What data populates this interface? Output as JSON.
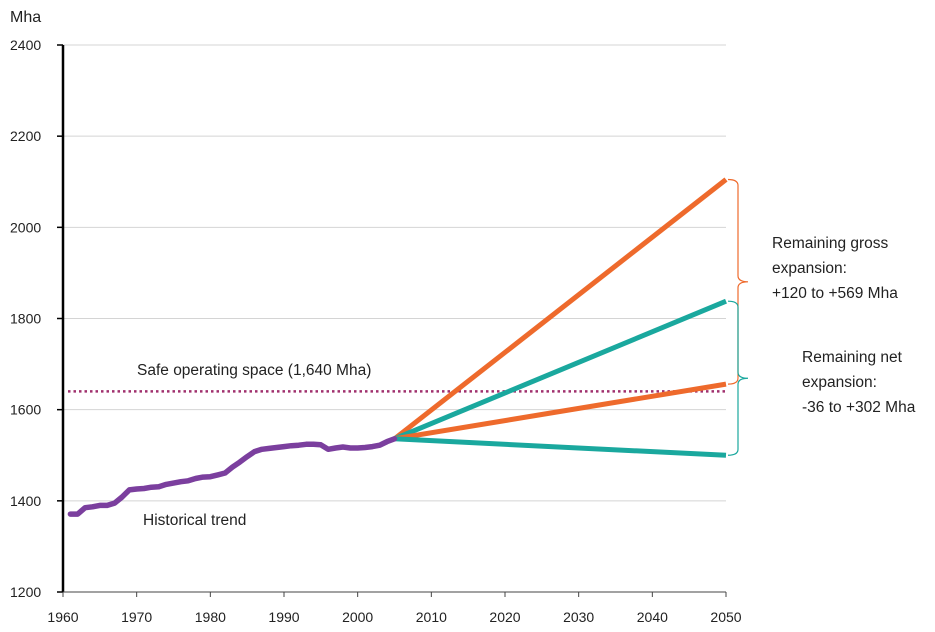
{
  "chart_data": {
    "type": "line",
    "title": "",
    "xlabel": "",
    "ylabel": "Mha",
    "xlim": [
      1960,
      2050
    ],
    "ylim": [
      1200,
      2400
    ],
    "x_ticks": [
      "1960",
      "1970",
      "1980",
      "1990",
      "2000",
      "2010",
      "2020",
      "2030",
      "2040",
      "2050"
    ],
    "y_ticks": [
      "1200",
      "1400",
      "1600",
      "1800",
      "2000",
      "2200",
      "2400"
    ],
    "grid": "horizontal",
    "series": [
      {
        "name": "Historical trend",
        "color": "#7b3f9e",
        "x": [
          1961,
          1962,
          1963,
          1964,
          1965,
          1966,
          1967,
          1968,
          1969,
          1970,
          1971,
          1972,
          1973,
          1974,
          1975,
          1976,
          1977,
          1978,
          1979,
          1980,
          1981,
          1982,
          1983,
          1984,
          1985,
          1986,
          1987,
          1988,
          1989,
          1990,
          1991,
          1992,
          1993,
          1994,
          1995,
          1996,
          1997,
          1998,
          1999,
          2000,
          2001,
          2002,
          2003,
          2004,
          2005
        ],
        "y": [
          1371,
          1371,
          1385,
          1387,
          1390,
          1390,
          1395,
          1408,
          1424,
          1426,
          1427,
          1430,
          1431,
          1436,
          1439,
          1442,
          1444,
          1449,
          1452,
          1453,
          1457,
          1461,
          1474,
          1485,
          1497,
          1508,
          1513,
          1515,
          1517,
          1519,
          1521,
          1522,
          1524,
          1524,
          1523,
          1513,
          1516,
          1518,
          1516,
          1516,
          1517,
          1519,
          1522,
          1530,
          1536
        ]
      },
      {
        "name": "",
        "color": "#ee6a2c",
        "x": [
          2005,
          2050
        ],
        "y": [
          1536,
          2105
        ]
      },
      {
        "name": "",
        "color": "#1aa89e",
        "x": [
          2005,
          2050
        ],
        "y": [
          1536,
          1838
        ]
      },
      {
        "name": "",
        "color": "#ee6a2c",
        "x": [
          2005,
          2050
        ],
        "y": [
          1536,
          1656
        ]
      },
      {
        "name": "",
        "color": "#1aa89e",
        "x": [
          2005,
          2050
        ],
        "y": [
          1536,
          1500
        ]
      }
    ],
    "reference_line": {
      "label": "Safe operating space (1,640 Mha)",
      "value": 1640,
      "color": "#a0306e"
    },
    "annotations": {
      "historical": "Historical trend",
      "gross": [
        "Remaining gross",
        "expansion:",
        "+120 to +569 Mha"
      ],
      "net": [
        "Remaining net",
        "expansion:",
        "-36 to +302 Mha"
      ]
    },
    "brace_colors": {
      "gross": "#ee6a2c",
      "net": "#1aa89e"
    }
  }
}
